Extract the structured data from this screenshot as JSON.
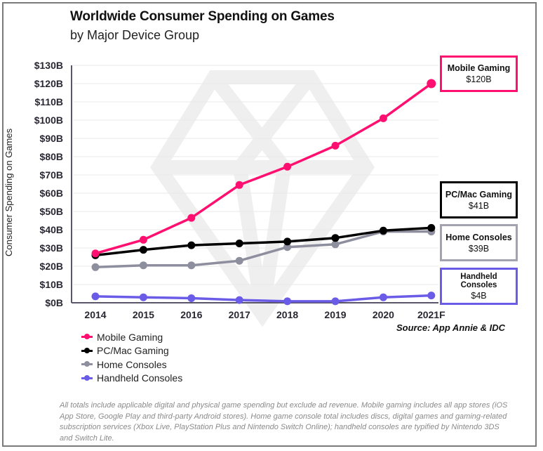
{
  "header": {
    "title": "Worldwide Consumer Spending on Games",
    "subtitle": "by Major Device Group"
  },
  "source": "Source: App Annie & IDC",
  "footnote": "All totals include applicable digital and physical game spending but exclude ad revenue. Mobile gaming includes all app stores (iOS App Store, Google Play and third-party Android stores). Home game console total includes discs, digital games and gaming-related subscription services (Xbox Live, PlayStation Plus and Nintendo Switch Online); handheld consoles are typified by Nintendo 3DS and Switch Lite.",
  "callouts": [
    {
      "name": "Mobile Gaming",
      "value": "$120B",
      "color": "#ff0f6f"
    },
    {
      "name": "PC/Mac Gaming",
      "value": "$41B",
      "color": "#000000"
    },
    {
      "name": "Home Consoles",
      "value": "$39B",
      "color": "#9a9aa6"
    },
    {
      "name": "Handheld Consoles",
      "value": "$4B",
      "color": "#6b5ce7"
    }
  ],
  "chart_data": {
    "type": "line",
    "title": "Worldwide Consumer Spending on Games",
    "subtitle": "by Major Device Group",
    "xlabel": "",
    "ylabel": "Consumer Spending on Games",
    "categories": [
      "2014",
      "2015",
      "2016",
      "2017",
      "2018",
      "2019",
      "2020",
      "2021F"
    ],
    "ylim": [
      0,
      130
    ],
    "yticks": [
      0,
      10,
      20,
      30,
      40,
      50,
      60,
      70,
      80,
      90,
      100,
      110,
      120,
      130
    ],
    "ytick_labels": [
      "$0B",
      "$10B",
      "$20B",
      "$30B",
      "$40B",
      "$50B",
      "$60B",
      "$70B",
      "$80B",
      "$90B",
      "$100B",
      "$110B",
      "$120B",
      "$130B"
    ],
    "grid": true,
    "legend": "bottom-left",
    "series": [
      {
        "name": "Mobile Gaming",
        "color": "#ff0f6f",
        "values": [
          27,
          34.5,
          46.5,
          64.5,
          74.5,
          86,
          101,
          120
        ]
      },
      {
        "name": "PC/Mac Gaming",
        "color": "#000000",
        "values": [
          26,
          29,
          31.5,
          32.5,
          33.5,
          35.5,
          39.5,
          41
        ]
      },
      {
        "name": "Home Consoles",
        "color": "#8e8f9e",
        "values": [
          19.5,
          20.5,
          20.5,
          23,
          30.5,
          32,
          39,
          39
        ]
      },
      {
        "name": "Handheld Consoles",
        "color": "#6b5ce7",
        "values": [
          3.5,
          3,
          2.5,
          1.5,
          0.8,
          0.8,
          3,
          4
        ]
      }
    ]
  }
}
